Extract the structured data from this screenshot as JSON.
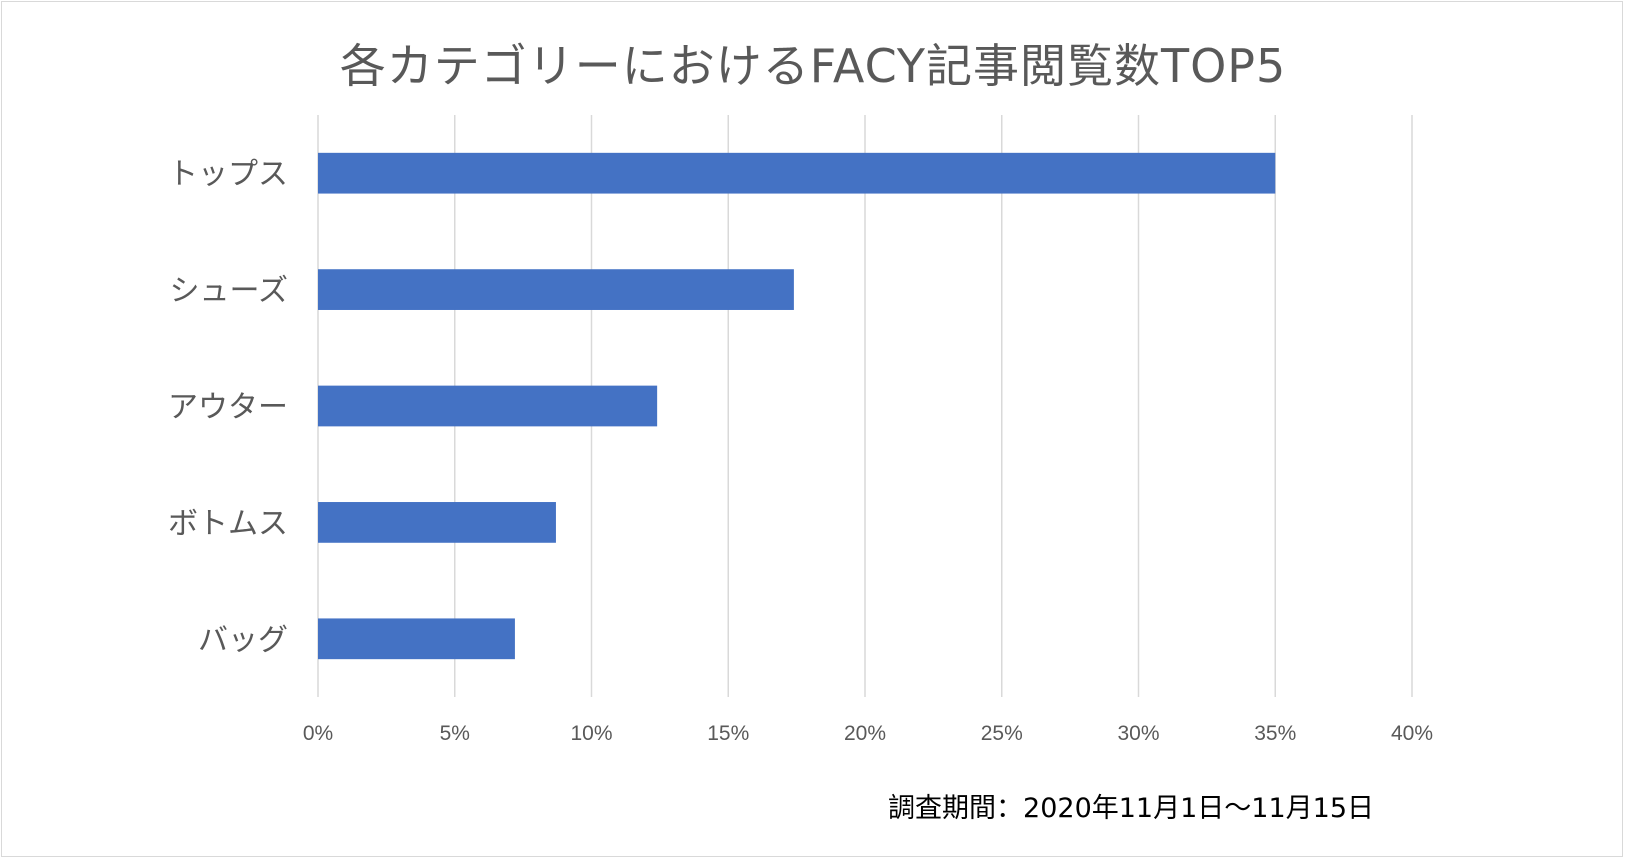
{
  "chart_data": {
    "type": "bar",
    "orientation": "horizontal",
    "title": "各カテゴリーにおけるFACY記事閲覧数TOP5",
    "categories": [
      "トップス",
      "シューズ",
      "アウター",
      "ボトムス",
      "バッグ"
    ],
    "values": [
      35.0,
      17.4,
      12.4,
      8.7,
      7.2
    ],
    "unit": "%",
    "xlim": [
      0,
      40
    ],
    "xticks": [
      0,
      5,
      10,
      15,
      20,
      25,
      30,
      35,
      40
    ],
    "xtick_labels": [
      "0%",
      "5%",
      "10%",
      "15%",
      "20%",
      "25%",
      "30%",
      "35%",
      "40%"
    ],
    "grid": "vertical",
    "legend": "none",
    "bar_color": "#4472c4",
    "grid_color": "#d9d9d9",
    "footnote": "調査期間：2020年11月1日～11月15日"
  }
}
